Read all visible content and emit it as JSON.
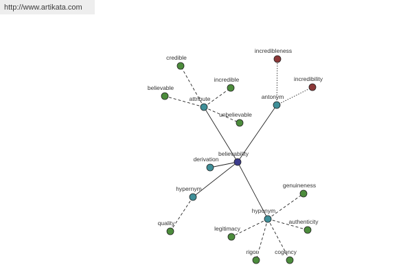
{
  "header": {
    "url": "http://www.artikata.com"
  },
  "nodes": [
    {
      "label": "believability"
    },
    {
      "label": "attribute"
    },
    {
      "label": "antonym"
    },
    {
      "label": "derivation"
    },
    {
      "label": "hypernym"
    },
    {
      "label": "hyponym"
    },
    {
      "label": "credible"
    },
    {
      "label": "incredible"
    },
    {
      "label": "believable"
    },
    {
      "label": "unbelievable"
    },
    {
      "label": "incredibleness"
    },
    {
      "label": "incredibility"
    },
    {
      "label": "quality"
    },
    {
      "label": "genuineness"
    },
    {
      "label": "authenticity"
    },
    {
      "label": "legitimacy"
    },
    {
      "label": "rigor"
    },
    {
      "label": "cogency"
    }
  ]
}
